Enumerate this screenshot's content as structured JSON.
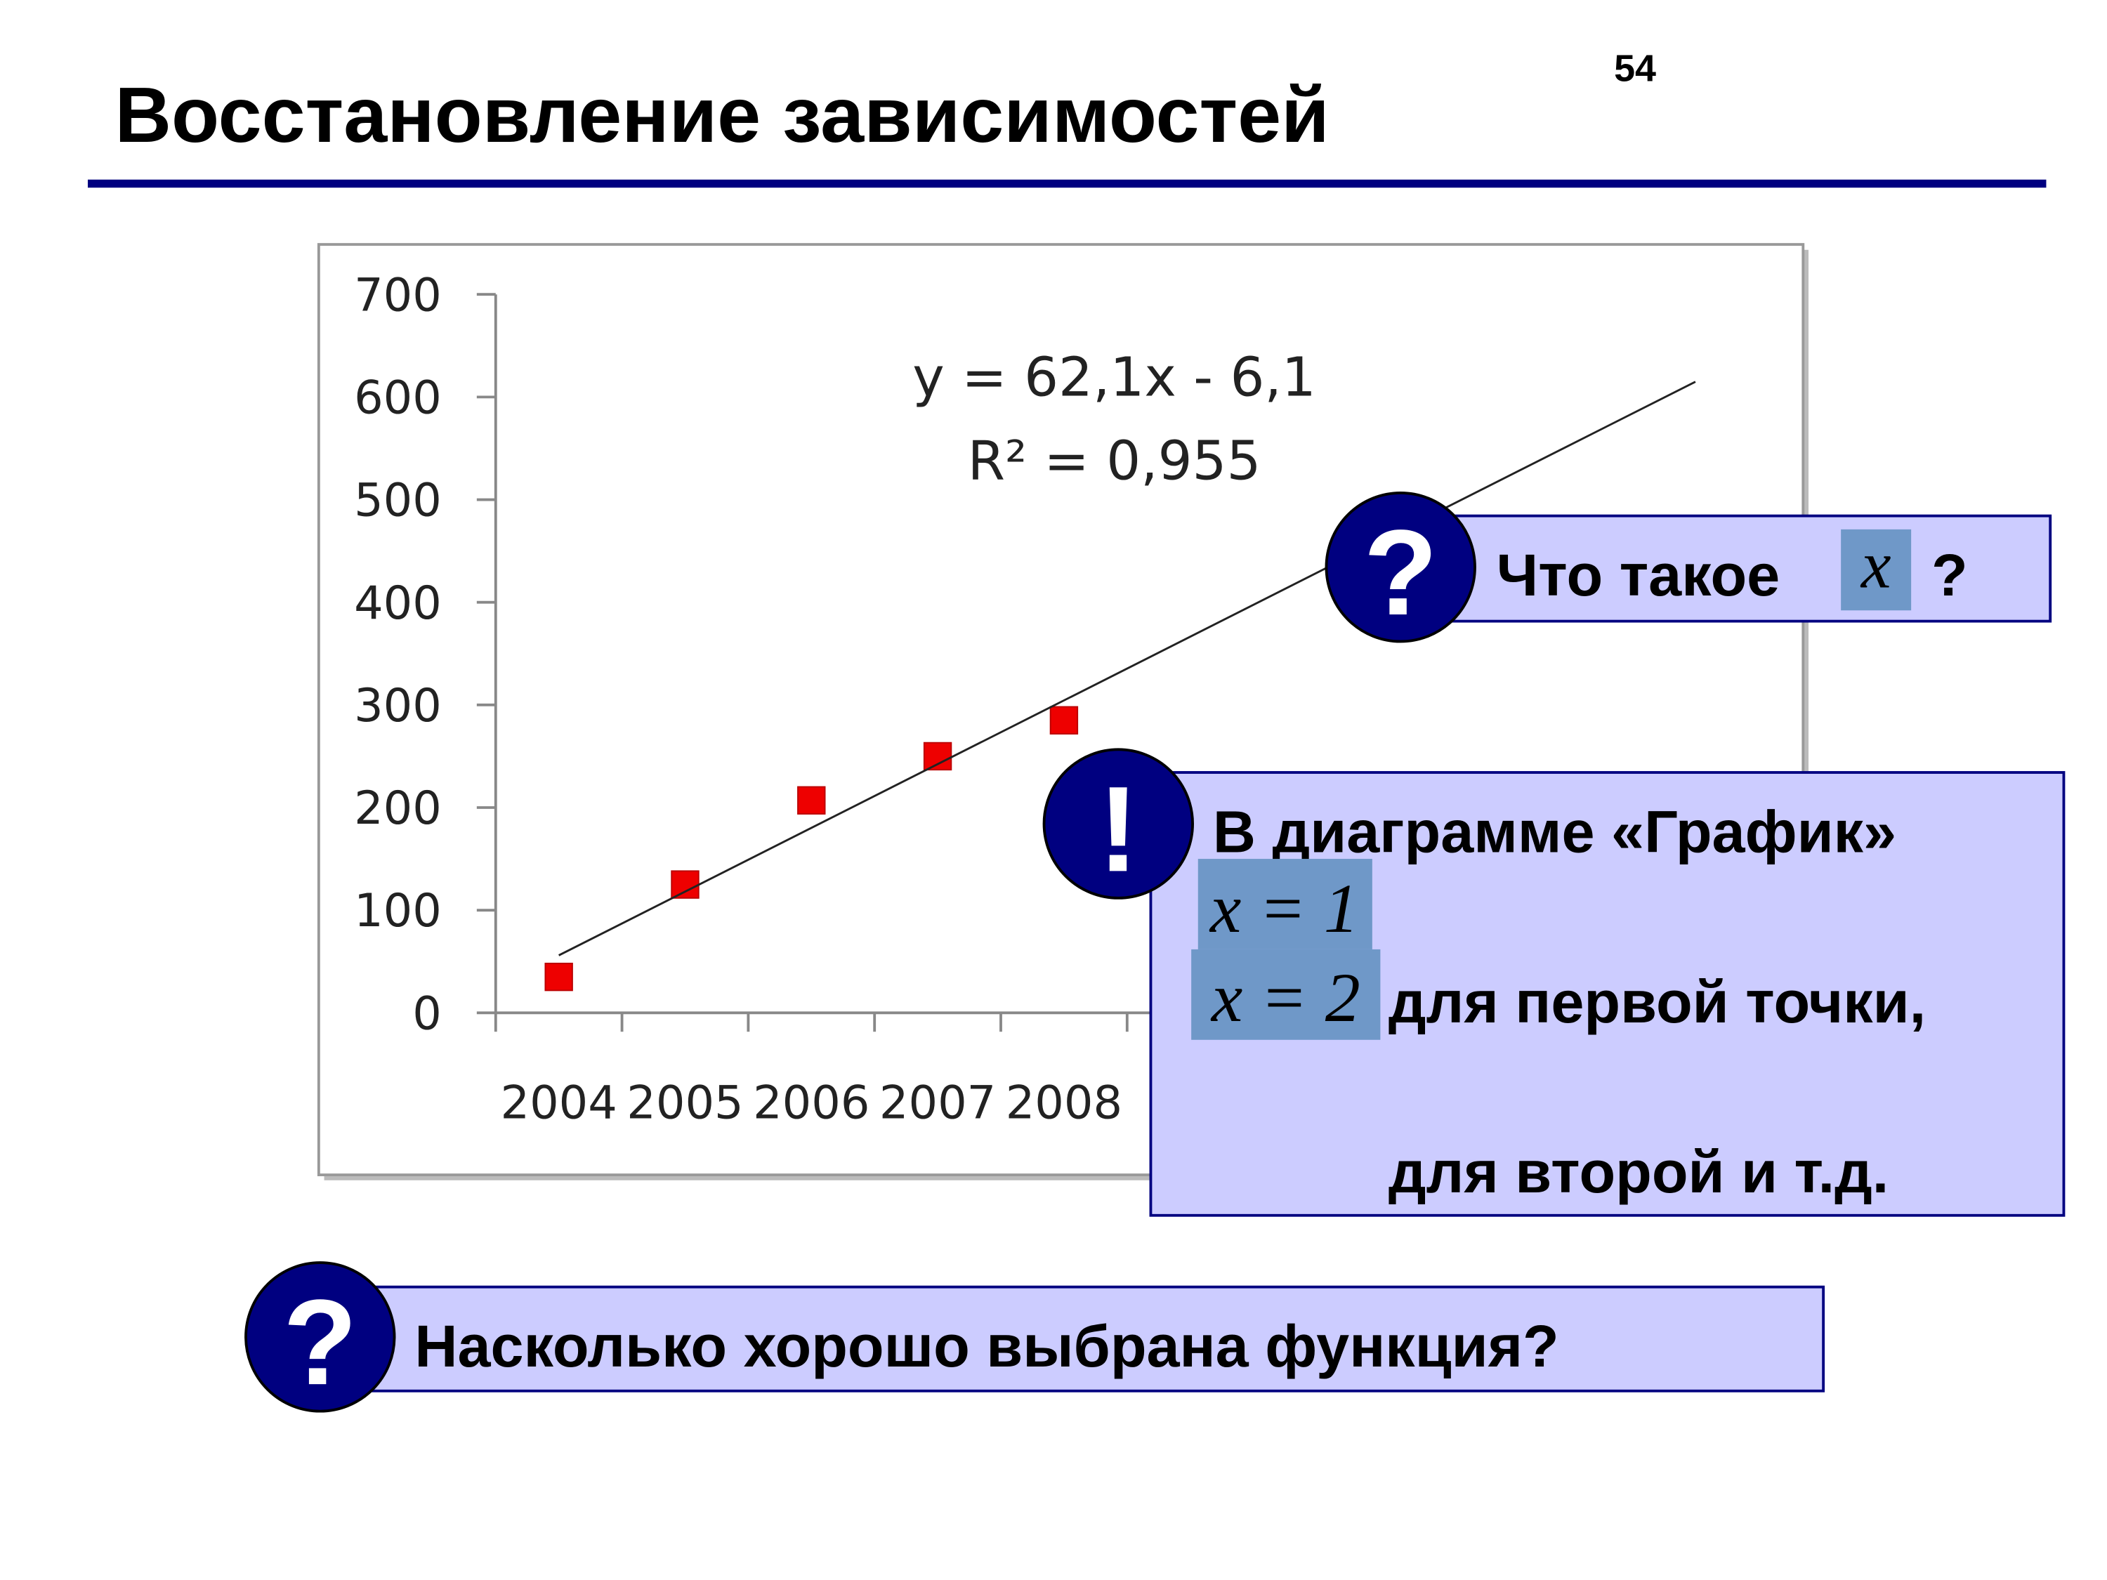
{
  "page_number": "54",
  "title": "Восстановление зависимостей",
  "chart_data": {
    "type": "scatter",
    "categories": [
      "2004",
      "2005",
      "2006",
      "2007",
      "2008",
      null,
      null,
      null,
      null,
      null
    ],
    "values": [
      35,
      125,
      207,
      250,
      285,
      null,
      null,
      null,
      null,
      null
    ],
    "color": "#ee0000",
    "ylim": [
      0,
      700
    ],
    "yticks": [
      0,
      100,
      200,
      300,
      400,
      500,
      600,
      700
    ],
    "trendline": {
      "equation": "y = 62,1x - 6,1",
      "r2": "R² = 0,955",
      "slope": 62.1,
      "intercept": -6.1
    }
  },
  "callouts": [
    {
      "icon": "?",
      "text": "Что такое",
      "math": "x",
      "end": "?"
    },
    {
      "icon": "!",
      "text": "В диаграмме «График»",
      "math1": "x = 1",
      "math2": "x = 2",
      "line2": "для первой точки,",
      "line3": "для второй и т.д."
    },
    {
      "icon": "?",
      "text": "Насколько хорошо выбрана функция?"
    }
  ]
}
